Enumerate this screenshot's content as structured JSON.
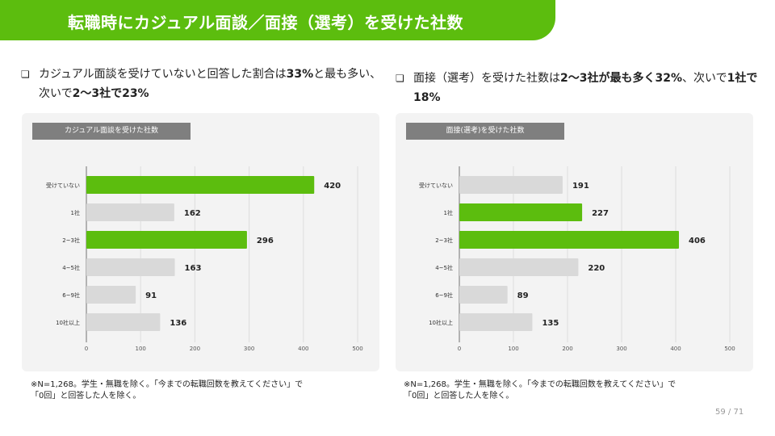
{
  "header": {
    "title": "転職時にカジュアル面談／面接（選考）を受けた社数"
  },
  "bullets": [
    {
      "mark": "❏",
      "segments": [
        {
          "t": "カジュアル面談を受けていないと回答した割合は",
          "b": false
        },
        {
          "t": "33%",
          "b": true
        },
        {
          "t": "と最も多い、次いで",
          "b": false
        },
        {
          "t": "2〜3社で23%",
          "b": true
        }
      ]
    },
    {
      "mark": "❏",
      "segments": [
        {
          "t": "面接（選考）を受けた社数は",
          "b": false
        },
        {
          "t": "2〜3社が最も多く32%",
          "b": true
        },
        {
          "t": "、次いで",
          "b": false
        },
        {
          "t": "1社で18%",
          "b": true
        }
      ]
    }
  ],
  "colors": {
    "accent": "#5cbd0e",
    "bar_default": "#d9d9d9",
    "bar_highlight": "#5cbd0e"
  },
  "chart_data": [
    {
      "type": "bar",
      "orientation": "horizontal",
      "title": "カジュアル面談を受けた社数",
      "categories": [
        "受けていない",
        "1社",
        "2~3社",
        "4~5社",
        "6~9社",
        "10社以上"
      ],
      "values": [
        420,
        162,
        296,
        163,
        91,
        136
      ],
      "highlight": [
        true,
        false,
        true,
        false,
        false,
        false
      ],
      "xlim": [
        0,
        500
      ],
      "xticks": [
        0,
        100,
        200,
        300,
        400,
        500
      ],
      "grid": true
    },
    {
      "type": "bar",
      "orientation": "horizontal",
      "title": "面接(選考)を受けた社数",
      "categories": [
        "受けていない",
        "1社",
        "2~3社",
        "4~5社",
        "6~9社",
        "10社以上"
      ],
      "values": [
        191,
        227,
        406,
        220,
        89,
        135
      ],
      "highlight": [
        false,
        true,
        true,
        false,
        false,
        false
      ],
      "xlim": [
        0,
        500
      ],
      "xticks": [
        0,
        100,
        200,
        300,
        400,
        500
      ],
      "grid": true
    }
  ],
  "footnotes": [
    [
      "※N=1,268。学生・無職を除く。「今までの転職回数を教えてください」で",
      "「0回」と回答した人を除く。"
    ],
    [
      "※N=1,268。学生・無職を除く。「今までの転職回数を教えてください」で",
      "「0回」と回答した人を除く。"
    ]
  ],
  "page": {
    "current": "59",
    "separator": "/",
    "total": "71"
  }
}
